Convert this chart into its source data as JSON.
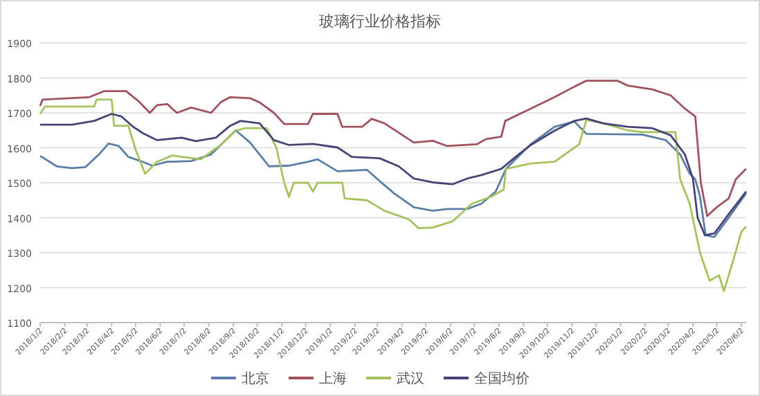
{
  "chart_data": {
    "type": "line",
    "title": "玻璃行业价格指标",
    "grid": "y",
    "legend": "bottom",
    "line_style": "solid",
    "marker": "none",
    "xlim": [
      "2018-01-02",
      "2020-06-08"
    ],
    "ylim": [
      1100,
      1900
    ],
    "yticks": [
      1100,
      1200,
      1300,
      1400,
      1500,
      1600,
      1700,
      1800,
      1900
    ],
    "xticks": [
      {
        "value": "2018-01-02",
        "label": "2018/1/2"
      },
      {
        "value": "2018-02-02",
        "label": "2018/2/2"
      },
      {
        "value": "2018-03-02",
        "label": "2018/3/2"
      },
      {
        "value": "2018-04-02",
        "label": "2018/4/2"
      },
      {
        "value": "2018-05-02",
        "label": "2018/5/2"
      },
      {
        "value": "2018-06-02",
        "label": "2018/6/2"
      },
      {
        "value": "2018-07-02",
        "label": "2018/7/2"
      },
      {
        "value": "2018-08-02",
        "label": "2018/8/2"
      },
      {
        "value": "2018-09-02",
        "label": "2018/9/2"
      },
      {
        "value": "2018-10-02",
        "label": "2018/10/2"
      },
      {
        "value": "2018-11-02",
        "label": "2018/11/2"
      },
      {
        "value": "2018-12-02",
        "label": "2018/12/2"
      },
      {
        "value": "2019-01-02",
        "label": "2019/1/2"
      },
      {
        "value": "2019-02-02",
        "label": "2019/2/2"
      },
      {
        "value": "2019-03-02",
        "label": "2019/3/2"
      },
      {
        "value": "2019-04-02",
        "label": "2019/4/2"
      },
      {
        "value": "2019-05-02",
        "label": "2019/5/2"
      },
      {
        "value": "2019-06-02",
        "label": "2019/6/2"
      },
      {
        "value": "2019-07-02",
        "label": "2019/7/2"
      },
      {
        "value": "2019-08-02",
        "label": "2019/8/2"
      },
      {
        "value": "2019-09-02",
        "label": "2019/9/2"
      },
      {
        "value": "2019-10-02",
        "label": "2019/10/2"
      },
      {
        "value": "2019-11-02",
        "label": "2019/11/2"
      },
      {
        "value": "2019-12-02",
        "label": "2019/12/2"
      },
      {
        "value": "2020-01-02",
        "label": "2020/1/2"
      },
      {
        "value": "2020-02-02",
        "label": "2020/2/2"
      },
      {
        "value": "2020-03-02",
        "label": "2020/3/2"
      },
      {
        "value": "2020-04-02",
        "label": "2020/4/2"
      },
      {
        "value": "2020-05-02",
        "label": "2020/5/2"
      },
      {
        "value": "2020-06-02",
        "label": "2020/6/2"
      }
    ],
    "series": [
      {
        "name": "北京",
        "color": "#5a7ea8",
        "x": [
          "2018-01-02",
          "2018-01-23",
          "2018-02-11",
          "2018-02-28",
          "2018-03-17",
          "2018-03-29",
          "2018-04-11",
          "2018-04-23",
          "2018-05-11",
          "2018-05-23",
          "2018-06-11",
          "2018-07-11",
          "2018-08-05",
          "2018-09-05",
          "2018-09-23",
          "2018-10-17",
          "2018-11-11",
          "2018-12-05",
          "2018-12-17",
          "2019-01-11",
          "2019-02-17",
          "2019-03-05",
          "2019-03-23",
          "2019-04-17",
          "2019-05-11",
          "2019-05-29",
          "2019-06-23",
          "2019-07-11",
          "2019-07-29",
          "2019-08-11",
          "2019-09-11",
          "2019-10-11",
          "2019-11-05",
          "2019-11-20",
          "2020-01-29",
          "2020-02-28",
          "2020-03-17",
          "2020-03-29",
          "2020-04-05",
          "2020-04-11",
          "2020-04-18",
          "2020-04-29",
          "2020-05-17",
          "2020-06-08"
        ],
        "values": [
          1577,
          1547,
          1542,
          1545,
          1581,
          1612,
          1605,
          1574,
          1560,
          1549,
          1560,
          1562,
          1581,
          1650,
          1615,
          1547,
          1549,
          1560,
          1567,
          1533,
          1537,
          1505,
          1470,
          1430,
          1420,
          1425,
          1425,
          1440,
          1475,
          1540,
          1610,
          1660,
          1675,
          1640,
          1638,
          1622,
          1581,
          1526,
          1510,
          1460,
          1350,
          1345,
          1400,
          1470
        ]
      },
      {
        "name": "上海",
        "color": "#a0525e",
        "x": [
          "2018-01-02",
          "2018-01-05",
          "2018-03-05",
          "2018-03-23",
          "2018-04-20",
          "2018-05-05",
          "2018-05-20",
          "2018-05-29",
          "2018-06-11",
          "2018-06-23",
          "2018-07-11",
          "2018-08-05",
          "2018-08-17",
          "2018-08-29",
          "2018-09-23",
          "2018-10-05",
          "2018-10-23",
          "2018-11-05",
          "2018-12-05",
          "2018-12-11",
          "2019-01-11",
          "2019-01-17",
          "2019-02-11",
          "2019-02-23",
          "2019-03-11",
          "2019-04-17",
          "2019-05-11",
          "2019-05-29",
          "2019-07-05",
          "2019-07-17",
          "2019-08-05",
          "2019-08-10",
          "2019-09-11",
          "2019-10-11",
          "2019-11-05",
          "2019-11-20",
          "2019-12-29",
          "2020-01-11",
          "2020-02-11",
          "2020-03-05",
          "2020-03-23",
          "2020-04-05",
          "2020-04-12",
          "2020-04-20",
          "2020-05-02",
          "2020-05-17",
          "2020-05-26",
          "2020-06-08"
        ],
        "values": [
          1720,
          1738,
          1745,
          1762,
          1762,
          1735,
          1700,
          1722,
          1725,
          1700,
          1715,
          1700,
          1730,
          1745,
          1742,
          1730,
          1700,
          1668,
          1668,
          1697,
          1697,
          1660,
          1660,
          1683,
          1670,
          1615,
          1620,
          1605,
          1610,
          1625,
          1632,
          1677,
          1712,
          1745,
          1775,
          1792,
          1792,
          1778,
          1767,
          1750,
          1712,
          1690,
          1500,
          1405,
          1430,
          1455,
          1510,
          1540
        ]
      },
      {
        "name": "武汉",
        "color": "#a5c25f",
        "x": [
          "2018-01-02",
          "2018-01-08",
          "2018-03-11",
          "2018-03-14",
          "2018-04-02",
          "2018-04-05",
          "2018-04-23",
          "2018-05-02",
          "2018-05-14",
          "2018-05-29",
          "2018-06-17",
          "2018-07-23",
          "2018-08-17",
          "2018-09-05",
          "2018-09-17",
          "2018-10-14",
          "2018-10-26",
          "2018-11-05",
          "2018-11-11",
          "2018-11-17",
          "2018-12-05",
          "2018-12-11",
          "2018-12-17",
          "2019-01-17",
          "2019-01-20",
          "2019-02-17",
          "2019-03-11",
          "2019-04-11",
          "2019-04-23",
          "2019-05-11",
          "2019-06-05",
          "2019-06-29",
          "2019-07-23",
          "2019-08-08",
          "2019-08-11",
          "2019-09-11",
          "2019-10-11",
          "2019-11-11",
          "2019-11-20",
          "2019-12-11",
          "2020-01-11",
          "2020-01-29",
          "2020-03-11",
          "2020-03-17",
          "2020-03-29",
          "2020-04-11",
          "2020-04-23",
          "2020-05-05",
          "2020-05-11",
          "2020-05-23",
          "2020-06-02",
          "2020-06-08"
        ],
        "values": [
          1697,
          1718,
          1718,
          1738,
          1738,
          1663,
          1663,
          1595,
          1526,
          1560,
          1578,
          1567,
          1608,
          1649,
          1656,
          1656,
          1601,
          1500,
          1460,
          1500,
          1500,
          1475,
          1500,
          1500,
          1455,
          1450,
          1420,
          1395,
          1370,
          1372,
          1390,
          1440,
          1460,
          1480,
          1540,
          1555,
          1560,
          1610,
          1680,
          1670,
          1650,
          1645,
          1645,
          1510,
          1440,
          1300,
          1220,
          1235,
          1190,
          1280,
          1360,
          1375
        ]
      },
      {
        "name": "全国均价",
        "color": "#45457a",
        "x": [
          "2018-01-02",
          "2018-02-11",
          "2018-03-11",
          "2018-04-02",
          "2018-04-14",
          "2018-04-29",
          "2018-05-11",
          "2018-05-29",
          "2018-06-29",
          "2018-07-17",
          "2018-08-11",
          "2018-08-29",
          "2018-09-11",
          "2018-10-05",
          "2018-10-23",
          "2018-11-11",
          "2018-12-11",
          "2019-01-11",
          "2019-01-29",
          "2019-03-05",
          "2019-03-29",
          "2019-04-17",
          "2019-05-11",
          "2019-06-05",
          "2019-06-23",
          "2019-07-11",
          "2019-08-05",
          "2019-08-23",
          "2019-09-11",
          "2019-10-11",
          "2019-11-05",
          "2019-11-20",
          "2019-12-11",
          "2020-01-11",
          "2020-02-11",
          "2020-03-05",
          "2020-03-23",
          "2020-04-02",
          "2020-04-08",
          "2020-04-17",
          "2020-04-29",
          "2020-05-17",
          "2020-06-08"
        ],
        "values": [
          1666,
          1666,
          1677,
          1697,
          1690,
          1660,
          1642,
          1622,
          1629,
          1619,
          1629,
          1663,
          1677,
          1670,
          1622,
          1608,
          1611,
          1601,
          1574,
          1570,
          1547,
          1512,
          1501,
          1496,
          1512,
          1522,
          1540,
          1574,
          1608,
          1649,
          1677,
          1684,
          1670,
          1660,
          1656,
          1636,
          1581,
          1512,
          1400,
          1350,
          1355,
          1410,
          1475
        ]
      }
    ]
  }
}
